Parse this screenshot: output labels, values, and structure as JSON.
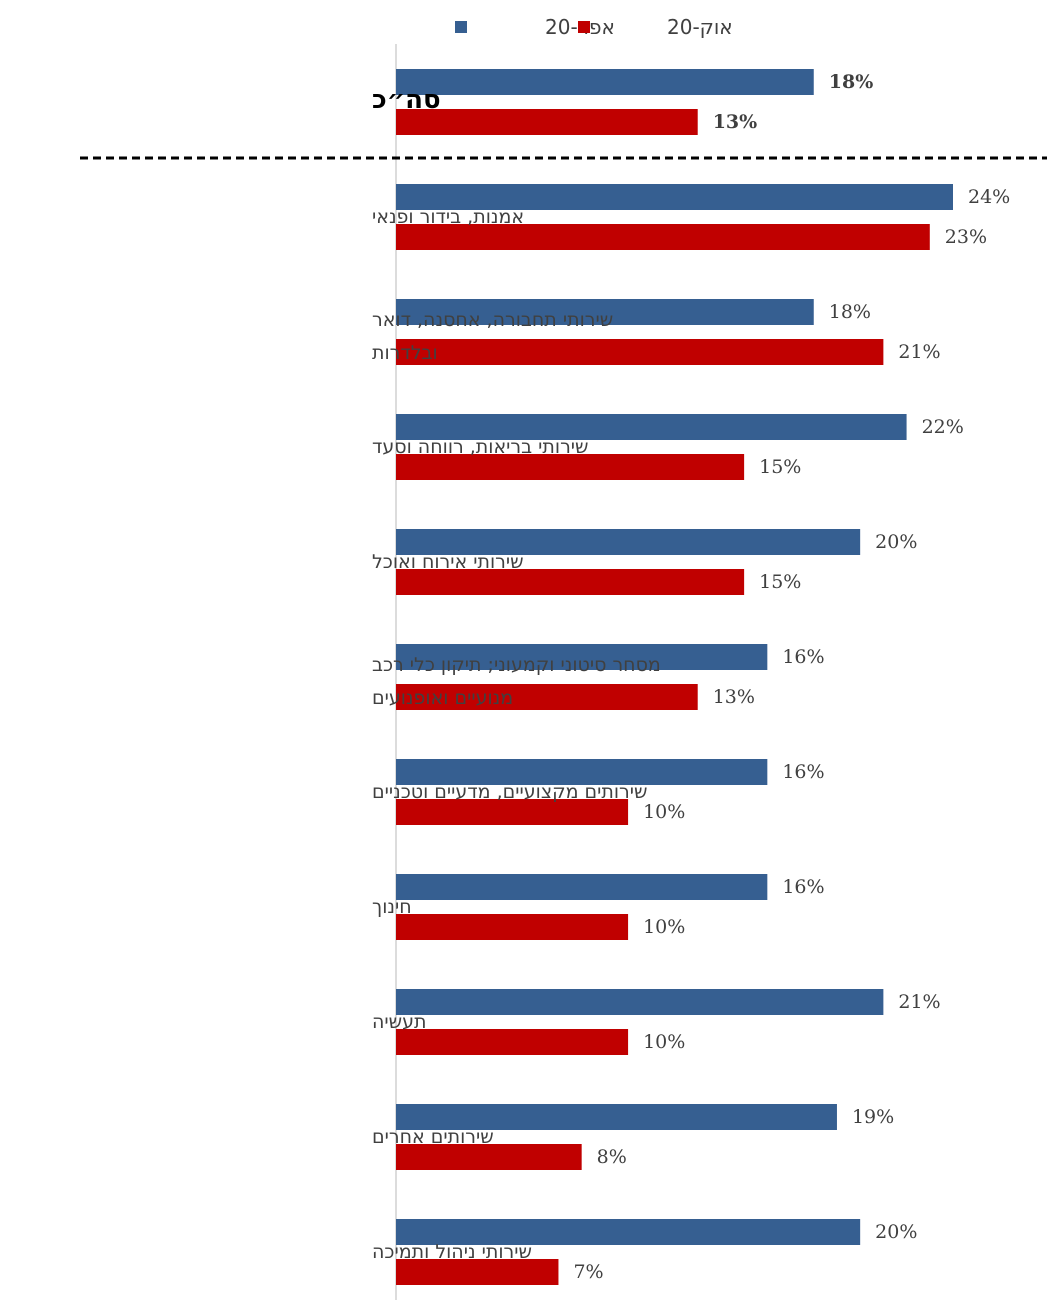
{
  "chart_data": {
    "type": "bar",
    "orientation": "horizontal",
    "xlim": [
      0,
      24
    ],
    "grid": false,
    "legend_position": "top",
    "categories": [
      "סה״כ",
      "אמנות, בידור ופנאי",
      "שירותי תחבורה, אחסנה, דואר ובלדרות",
      "שירותי בריאות, רווחה וסעד",
      "שירותי אירוח ואוכל",
      "מסחר סיטוני וקמעוני; תיקון כלי רכב מנועיים ואופנועים",
      "שירותים מקצועיים, מדעיים וטכניים",
      "חינוך",
      "תעשיה",
      "שירותים אחרים",
      "שירותי ניהול ותמיכה"
    ],
    "category_lines": [
      [
        "סה״כ"
      ],
      [
        "אמנות, בידור ופנאי"
      ],
      [
        "שירותי תחבורה, אחסנה, דואר",
        "ובלדרות"
      ],
      [
        "שירותי בריאות, רווחה וסעד"
      ],
      [
        "שירותי אירוח ואוכל"
      ],
      [
        "מסחר סיטוני וקמעוני; תיקון כלי רכב",
        "מנועיים ואופנועים"
      ],
      [
        "שירותים מקצועיים, מדעיים וטכניים"
      ],
      [
        "חינוך"
      ],
      [
        "תעשיה"
      ],
      [
        "שירותים אחרים"
      ],
      [
        "שירותי ניהול ותמיכה"
      ]
    ],
    "series": [
      {
        "name": "אפר-20",
        "color": "#365f91",
        "values": [
          18,
          24,
          18,
          22,
          20,
          16,
          16,
          16,
          21,
          19,
          20
        ],
        "labels": [
          "18%",
          "24%",
          "18%",
          "22%",
          "20%",
          "16%",
          "16%",
          "16%",
          "21%",
          "19%",
          "20%"
        ]
      },
      {
        "name": "אוק-20",
        "color": "#c00000",
        "values": [
          13,
          23,
          21,
          15,
          15,
          13,
          10,
          10,
          10,
          8,
          7
        ],
        "labels": [
          "13%",
          "23%",
          "21%",
          "15%",
          "15%",
          "13%",
          "10%",
          "10%",
          "10%",
          "8%",
          "7%"
        ]
      }
    ],
    "separator_after_first": true
  }
}
